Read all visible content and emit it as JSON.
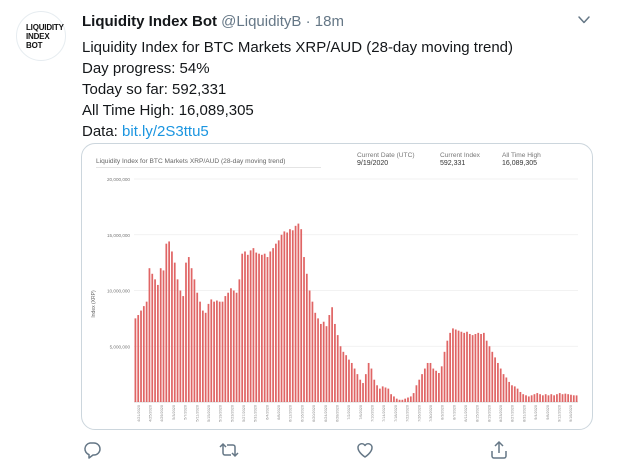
{
  "tweet": {
    "avatar_line1": "LIQUIDITY",
    "avatar_line2": "INDEX",
    "avatar_line3": "BOT",
    "name": "Liquidity Index Bot",
    "handle": "@LiquidityB",
    "separator": "·",
    "time": "18m",
    "lines": [
      "Liquidity Index for BTC Markets XRP/AUD (28-day moving trend)",
      "Day progress: 54%",
      "Today so far: 592,331",
      "All Time High: 16,089,305"
    ],
    "data_label": "Data: ",
    "data_link": "bit.ly/2S3ttu5"
  },
  "card": {
    "current_date_label": "Current Date (UTC)",
    "current_date_value": "9/19/2020",
    "current_index_label": "Current Index",
    "current_index_value": "592,331",
    "ath_label": "All Time High",
    "ath_value": "16,089,305"
  },
  "chart_data": {
    "type": "bar",
    "title": "Liquidity Index for BTC Markets XRP/AUD (28-day moving trend)",
    "xlabel": "",
    "ylabel": "Index (XRP)",
    "ylim": [
      0,
      20000000
    ],
    "yticks": [
      "20,000,000",
      "15,000,000",
      "10,000,000",
      "5,000,000"
    ],
    "ytick_values": [
      20000000,
      15000000,
      10000000,
      5000000
    ],
    "bar_color": "#e06565",
    "values": [
      7500000,
      7800000,
      8200000,
      8600000,
      9000000,
      12000000,
      11500000,
      11000000,
      10500000,
      12000000,
      11800000,
      14200000,
      14400000,
      13500000,
      12500000,
      11000000,
      10000000,
      9500000,
      12500000,
      13000000,
      12000000,
      11000000,
      9800000,
      9000000,
      8200000,
      8000000,
      8800000,
      9200000,
      9000000,
      9100000,
      9000000,
      9000000,
      9500000,
      9800000,
      10200000,
      10000000,
      9800000,
      11000000,
      13300000,
      13500000,
      13200000,
      13600000,
      13800000,
      13400000,
      13300000,
      13200000,
      13300000,
      13000000,
      13500000,
      13800000,
      14200000,
      14500000,
      15000000,
      15300000,
      15200000,
      15500000,
      15400000,
      15800000,
      16000000,
      15500000,
      13000000,
      11500000,
      10000000,
      9000000,
      8000000,
      7500000,
      7000000,
      7200000,
      6800000,
      7800000,
      8500000,
      7000000,
      6000000,
      5000000,
      4500000,
      4200000,
      3800000,
      3500000,
      3000000,
      2500000,
      2000000,
      1700000,
      2500000,
      3500000,
      3000000,
      2000000,
      1500000,
      1200000,
      1400000,
      1300000,
      1200000,
      700000,
      500000,
      300000,
      200000,
      200000,
      300000,
      400000,
      500000,
      800000,
      1500000,
      2000000,
      2500000,
      3000000,
      3500000,
      3500000,
      3000000,
      2800000,
      2600000,
      3200000,
      4500000,
      5500000,
      6200000,
      6600000,
      6500000,
      6400000,
      6300000,
      6200000,
      6300000,
      6100000,
      6000000,
      6100000,
      6200000,
      6100000,
      6200000,
      5500000,
      5000000,
      4500000,
      4000000,
      3500000,
      3000000,
      2500000,
      2200000,
      1800000,
      1500000,
      1400000,
      1200000,
      900000,
      700000,
      600000,
      500000,
      600000,
      700000,
      800000,
      700000,
      600000,
      700000,
      600000,
      700000,
      600000,
      700000,
      800000,
      700000,
      750000,
      700000,
      650000,
      600000,
      592331
    ],
    "x_tick_labels": [
      "4/21/2020",
      "4/25/2020",
      "4/29/2020",
      "5/3/2020",
      "5/7/2020",
      "5/11/2020",
      "5/15/2020",
      "5/19/2020",
      "5/23/2020",
      "5/27/2020",
      "5/31/2020",
      "6/4/2020",
      "6/8/2020",
      "6/12/2020",
      "6/16/2020",
      "6/20/2020",
      "6/24/2020",
      "6/28/2020",
      "7/2/2020",
      "7/6/2020",
      "7/10/2020",
      "7/14/2020",
      "7/18/2020",
      "7/22/2020",
      "7/26/2020",
      "7/30/2020",
      "8/3/2020",
      "8/7/2020",
      "8/11/2020",
      "8/15/2020",
      "8/19/2020",
      "8/23/2020",
      "8/27/2020",
      "8/31/2020",
      "9/4/2020",
      "9/8/2020",
      "9/12/2020",
      "9/16/2020"
    ]
  },
  "actions": {
    "reply": "reply-icon",
    "retweet": "retweet-icon",
    "like": "heart-icon",
    "share": "share-icon"
  }
}
